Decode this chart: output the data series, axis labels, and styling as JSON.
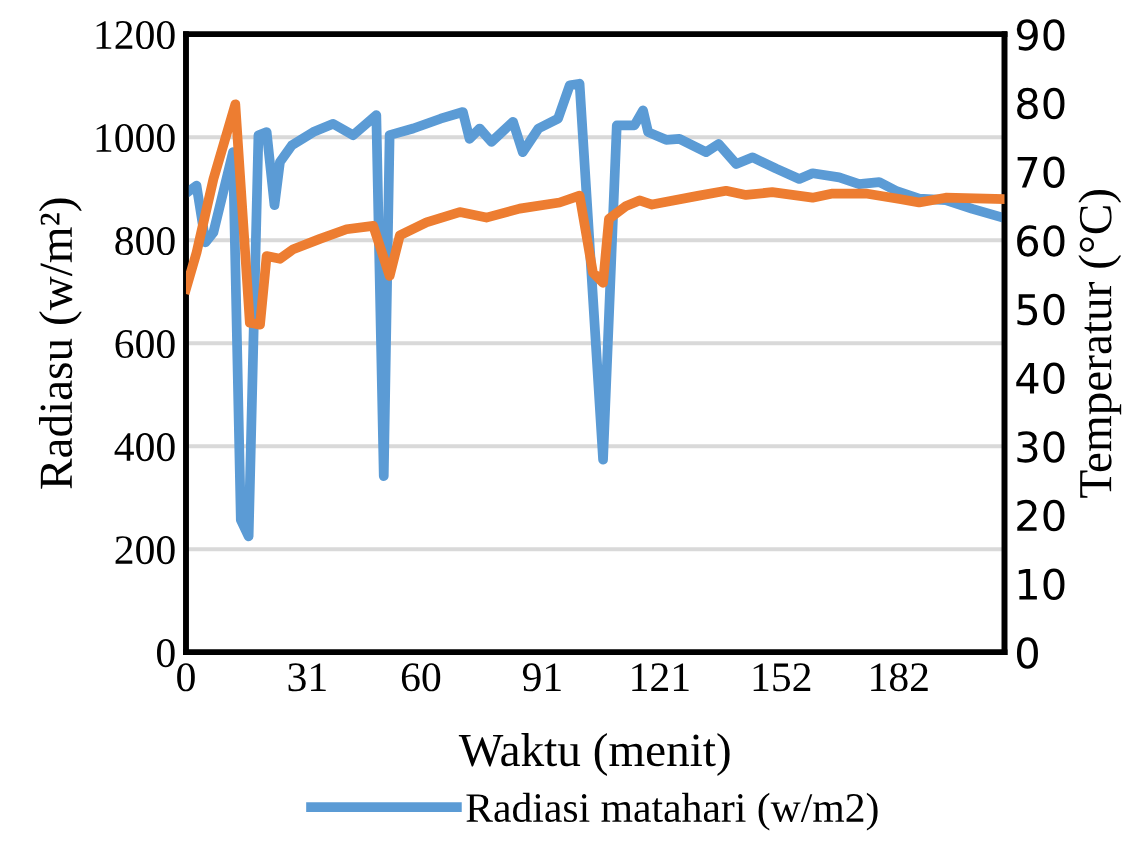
{
  "chart_data": {
    "type": "line",
    "xlabel": "Waktu (menit)",
    "ylabel": "Radiasu (w/m²)",
    "y2label": "Temperatur (°C)",
    "xlim": [
      0,
      209
    ],
    "xticks": [
      0,
      31,
      60,
      91,
      121,
      152,
      182
    ],
    "ylim": [
      0,
      1200
    ],
    "yticks": [
      0,
      200,
      400,
      600,
      800,
      1000,
      1200
    ],
    "y2lim": [
      0,
      90
    ],
    "y2ticks": [
      0,
      10,
      20,
      30,
      40,
      50,
      60,
      70,
      80,
      90
    ],
    "grid": "y",
    "legend": "bottom",
    "marker": "none",
    "line_style": "solid",
    "series": [
      {
        "name": "Radiasi matahari (w/m2)",
        "color": "#5b9bd5",
        "x": [
          0,
          2.7,
          5,
          7,
          12,
          14,
          16,
          18.5,
          20.6,
          22.6,
          24,
          27,
          32.5,
          37.6,
          42.7,
          48.6,
          50.5,
          52,
          58,
          65,
          70.7,
          72.4,
          75,
          78,
          83.5,
          86,
          90,
          95,
          98,
          100.5,
          106.5,
          110,
          114.5,
          116.7,
          118,
          122.6,
          126,
          132.8,
          136,
          140.5,
          144.7,
          150.7,
          156.6,
          160,
          166.8,
          171.9,
          177,
          181.3,
          187.2,
          194,
          200.8,
          208.5
        ],
        "values": [
          891,
          906,
          796,
          815,
          971,
          257,
          225,
          1004,
          1010,
          868,
          952,
          984,
          1010,
          1026,
          1004,
          1043,
          342,
          1004,
          1017,
          1036,
          1049,
          997,
          1017,
          991,
          1030,
          971,
          1017,
          1036,
          1101,
          1104,
          374,
          1023,
          1023,
          1052,
          1010,
          995,
          997,
          971,
          987,
          948,
          961,
          939,
          919,
          930,
          922,
          909,
          913,
          896,
          881,
          878,
          861,
          844
        ]
      },
      {
        "color": "#ed7d31",
        "axis": "y2",
        "x": [
          0,
          2.7,
          7,
          12.6,
          16.3,
          18.9,
          20.6,
          24,
          27.4,
          34.2,
          41,
          47.8,
          52,
          54.6,
          61.4,
          69.9,
          76.7,
          85.2,
          95.4,
          100.5,
          103.9,
          106.5,
          108,
          112.4,
          115.8,
          119,
          131,
          137.9,
          143,
          149.7,
          160,
          165.1,
          173.6,
          182.2,
          187.2,
          194,
          208.5
        ],
        "values": [
          52.9,
          58.2,
          68.9,
          79.8,
          48.0,
          47.7,
          57.7,
          57.3,
          58.7,
          60.2,
          61.6,
          62.1,
          54.8,
          60.7,
          62.6,
          64.1,
          63.3,
          64.6,
          65.5,
          66.5,
          55.3,
          53.8,
          63.1,
          65.0,
          65.8,
          65.2,
          66.5,
          67.2,
          66.6,
          67.0,
          66.2,
          66.8,
          66.8,
          66.0,
          65.5,
          66.2,
          66.0
        ]
      }
    ]
  }
}
